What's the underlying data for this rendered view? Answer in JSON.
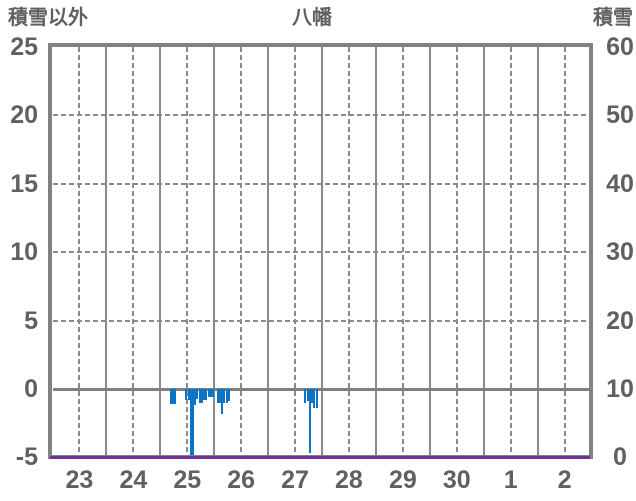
{
  "header": {
    "left_axis_title": "積雪以外",
    "chart_title": "八幡",
    "right_axis_title": "積雪"
  },
  "chart_data": {
    "type": "bar",
    "title": "八幡",
    "left_axis": {
      "label": "積雪以外",
      "ticks": [
        "25",
        "20",
        "15",
        "10",
        "5",
        "0",
        "-5"
      ],
      "tick_values": [
        25,
        20,
        15,
        10,
        5,
        0,
        -5
      ],
      "range": [
        -5,
        25
      ]
    },
    "right_axis": {
      "label": "積雪",
      "ticks": [
        "60",
        "50",
        "40",
        "30",
        "20",
        "10",
        "0"
      ],
      "tick_values": [
        60,
        50,
        40,
        30,
        20,
        10,
        0
      ],
      "range": [
        0,
        60
      ]
    },
    "x_axis": {
      "tick_labels": [
        "23",
        "24",
        "25",
        "26",
        "27",
        "28",
        "29",
        "30",
        "1",
        "2"
      ],
      "unit": "day",
      "hours_per_day": 24,
      "grid": "solid lines at midnight, dashed lines at noon"
    },
    "colors": {
      "bar": "#0b74c4",
      "snow_line": "#7030a0",
      "grid": "#8a8a8a",
      "frame": "#828282",
      "text": "#606060"
    },
    "bars_series_name": "積雪以外 (hourly, negative values)",
    "bars": [
      {
        "day": "25",
        "hour": 4,
        "value": -1.1
      },
      {
        "day": "25",
        "hour": 5,
        "value": -1.1
      },
      {
        "day": "25",
        "hour": 6,
        "value": -1.1
      },
      {
        "day": "25",
        "hour": 11,
        "value": -0.8
      },
      {
        "day": "25",
        "hour": 12,
        "value": -0.8
      },
      {
        "day": "25",
        "hour": 13,
        "value": -4.8
      },
      {
        "day": "25",
        "hour": 14,
        "value": -4.8
      },
      {
        "day": "25",
        "hour": 15,
        "value": -1.2
      },
      {
        "day": "25",
        "hour": 16,
        "value": -0.7
      },
      {
        "day": "25",
        "hour": 17,
        "value": -1.0
      },
      {
        "day": "25",
        "hour": 18,
        "value": -1.0
      },
      {
        "day": "25",
        "hour": 19,
        "value": -0.8
      },
      {
        "day": "25",
        "hour": 20,
        "value": -0.8
      },
      {
        "day": "25",
        "hour": 21,
        "value": -0.6
      },
      {
        "day": "25",
        "hour": 22,
        "value": -0.6
      },
      {
        "day": "25",
        "hour": 23,
        "value": -0.6
      },
      {
        "day": "26",
        "hour": 1,
        "value": -1.0
      },
      {
        "day": "26",
        "hour": 2,
        "value": -1.0
      },
      {
        "day": "26",
        "hour": 3,
        "value": -1.8
      },
      {
        "day": "26",
        "hour": 4,
        "value": -1.0
      },
      {
        "day": "26",
        "hour": 5,
        "value": -1.0
      },
      {
        "day": "26",
        "hour": 6,
        "value": -0.9
      },
      {
        "day": "27",
        "hour": 16,
        "value": -1.0
      },
      {
        "day": "27",
        "hour": 17,
        "value": -0.9
      },
      {
        "day": "27",
        "hour": 18,
        "value": -4.7
      },
      {
        "day": "27",
        "hour": 19,
        "value": -1.0
      },
      {
        "day": "27",
        "hour": 20,
        "value": -1.4
      },
      {
        "day": "27",
        "hour": 21,
        "value": -1.4
      }
    ],
    "snow_series": {
      "name": "積雪",
      "constant_value": 0,
      "axis": "right"
    }
  }
}
